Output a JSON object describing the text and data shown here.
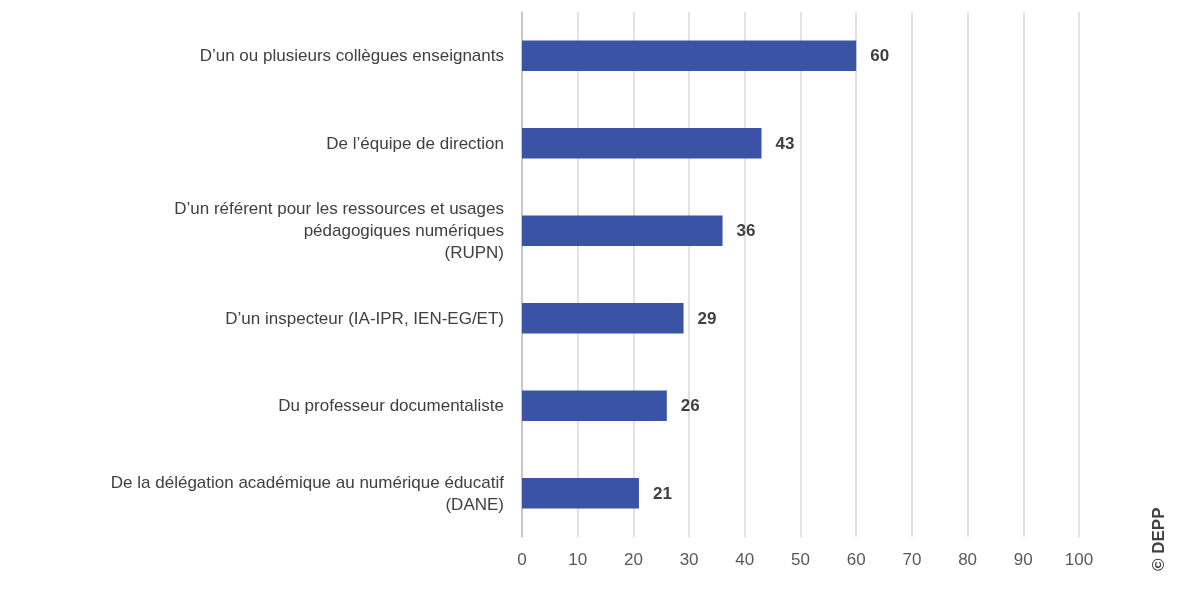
{
  "chart_data": {
    "type": "bar",
    "orientation": "horizontal",
    "categories": [
      "D’un ou plusieurs collègues enseignants",
      "De l’équipe de direction",
      "D’un référent pour les ressources et usages\npédagogiques numériques\n(RUPN)",
      "D’un inspecteur (IA-IPR, IEN-EG/ET)",
      "Du professeur documentaliste",
      "De la délégation académique au numérique éducatif\n(DANE)"
    ],
    "values": [
      60,
      43,
      36,
      29,
      26,
      21
    ],
    "color": "#3a53a4",
    "xlim": [
      0,
      100
    ],
    "xticks": [
      0,
      10,
      20,
      30,
      40,
      50,
      60,
      70,
      80,
      90,
      100
    ],
    "grid": "x",
    "data_labels": true,
    "annotations": [
      "© DEPP"
    ]
  }
}
